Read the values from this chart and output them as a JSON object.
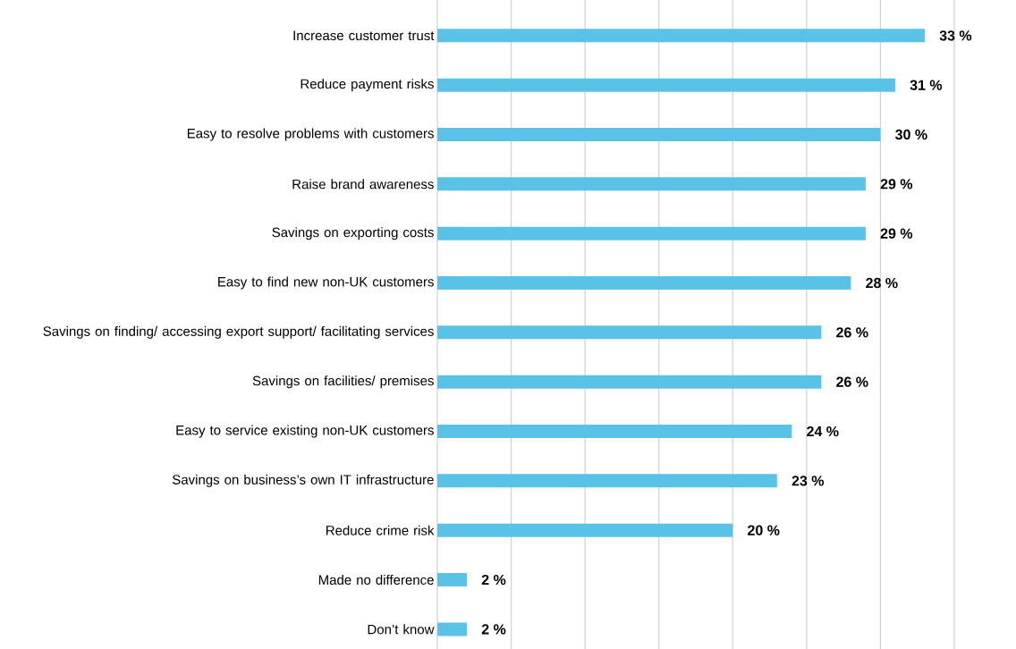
{
  "chart_data": {
    "type": "bar",
    "orientation": "horizontal",
    "categories": [
      "Increase customer trust",
      "Reduce payment risks",
      "Easy to resolve problems with customers",
      "Raise brand awareness",
      "Savings on exporting costs",
      "Easy to find new non-UK customers",
      "Savings on finding/ accessing export support/ facilitating services",
      "Savings on facilities/ premises",
      "Easy to service existing non-UK customers",
      "Savings on business’s own IT infrastructure",
      "Reduce crime risk",
      "Made no difference",
      "Don’t know"
    ],
    "values": [
      33,
      31,
      30,
      29,
      29,
      28,
      26,
      26,
      24,
      23,
      20,
      2,
      2
    ],
    "value_labels": [
      "33 %",
      "31 %",
      "30 %",
      "29 %",
      "29 %",
      "28 %",
      "26 %",
      "26 %",
      "24 %",
      "23 %",
      "20 %",
      "2 %",
      "2 %"
    ],
    "color": "#5bc2e7",
    "xlim": [
      0,
      35
    ],
    "xticks": [
      {
        "value": 0,
        "label": null
      },
      {
        "value": 5,
        "label": null
      },
      {
        "value": 10,
        "label": null
      },
      {
        "value": 15,
        "label": null
      },
      {
        "value": 20,
        "label": null
      },
      {
        "value": 25,
        "label": null
      },
      {
        "value": 30,
        "label": null
      },
      {
        "value": 35,
        "label": null
      }
    ],
    "grid": "x",
    "tick_labels": "y"
  }
}
